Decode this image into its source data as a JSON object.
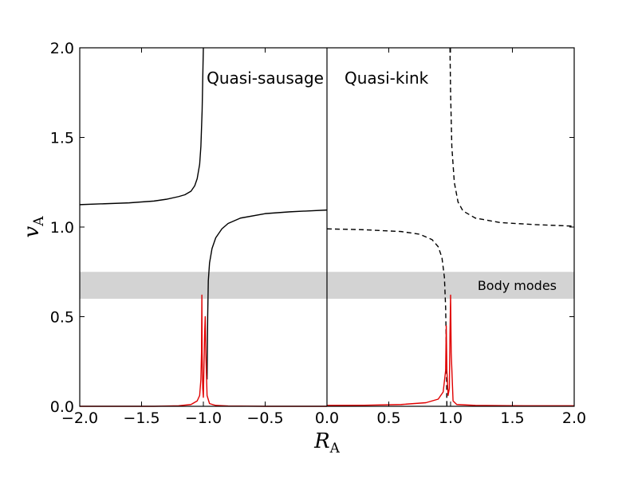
{
  "chart_data": {
    "type": "line",
    "xlabel": "R",
    "xlabel_sub": "A",
    "ylabel": "v",
    "ylabel_sub": "A",
    "xlim": [
      -2.0,
      2.0
    ],
    "ylim": [
      0.0,
      2.0
    ],
    "x_ticks": [
      -2.0,
      -1.5,
      -1.0,
      -0.5,
      0.0,
      0.5,
      1.0,
      1.5,
      2.0
    ],
    "x_tick_labels": [
      "−2.0",
      "−1.5",
      "−1.0",
      "−0.5",
      "0.0",
      "0.5",
      "1.0",
      "1.5",
      "2.0"
    ],
    "y_ticks": [
      0.0,
      0.5,
      1.0,
      1.5,
      2.0
    ],
    "y_tick_labels": [
      "0.0",
      "0.5",
      "1.0",
      "1.5",
      "2.0"
    ],
    "grid": false,
    "colors": {
      "curve": "#000000",
      "red_curve": "#e00000",
      "band": "#d3d3d3"
    },
    "band": {
      "y_range": [
        0.6,
        0.75
      ],
      "label": "Body modes"
    },
    "panels": [
      {
        "title": "Quasi-sausage",
        "x_range": [
          -2.0,
          0.0
        ],
        "series": [
          {
            "style": "solid",
            "color": "#000000",
            "points": [
              [
                -2.0,
                1.125
              ],
              [
                -1.8,
                1.13
              ],
              [
                -1.6,
                1.135
              ],
              [
                -1.4,
                1.145
              ],
              [
                -1.3,
                1.155
              ],
              [
                -1.2,
                1.17
              ],
              [
                -1.15,
                1.18
              ],
              [
                -1.1,
                1.2
              ],
              [
                -1.07,
                1.23
              ],
              [
                -1.05,
                1.27
              ],
              [
                -1.03,
                1.35
              ],
              [
                -1.02,
                1.45
              ],
              [
                -1.01,
                1.65
              ],
              [
                -1.003,
                1.9
              ],
              [
                -1.0,
                2.0
              ]
            ]
          },
          {
            "style": "solid",
            "color": "#000000",
            "points": [
              [
                -0.97,
                0.15
              ],
              [
                -0.965,
                0.5
              ],
              [
                -0.96,
                0.7
              ],
              [
                -0.95,
                0.8
              ],
              [
                -0.93,
                0.88
              ],
              [
                -0.9,
                0.94
              ],
              [
                -0.85,
                0.99
              ],
              [
                -0.8,
                1.02
              ],
              [
                -0.7,
                1.05
              ],
              [
                -0.5,
                1.075
              ],
              [
                -0.3,
                1.085
              ],
              [
                0.0,
                1.095
              ]
            ]
          },
          {
            "style": "solid",
            "color": "#e00000",
            "points": [
              [
                -2.0,
                0.0
              ],
              [
                -1.4,
                0.0
              ],
              [
                -1.2,
                0.003
              ],
              [
                -1.1,
                0.01
              ],
              [
                -1.05,
                0.03
              ],
              [
                -1.03,
                0.06
              ],
              [
                -1.02,
                0.15
              ],
              [
                -1.015,
                0.3
              ],
              [
                -1.012,
                0.62
              ],
              [
                -1.01,
                0.3
              ],
              [
                -1.005,
                0.1
              ],
              [
                -1.0,
                0.05
              ],
              [
                -0.99,
                0.4
              ],
              [
                -0.985,
                0.5
              ],
              [
                -0.98,
                0.3
              ],
              [
                -0.97,
                0.06
              ],
              [
                -0.95,
                0.015
              ],
              [
                -0.9,
                0.005
              ],
              [
                -0.8,
                0.002
              ],
              [
                -0.5,
                0.0
              ],
              [
                0.0,
                0.0
              ]
            ]
          }
        ]
      },
      {
        "title": "Quasi-kink",
        "x_range": [
          0.0,
          2.0
        ],
        "series": [
          {
            "style": "dashed",
            "color": "#000000",
            "points": [
              [
                0.0,
                0.99
              ],
              [
                0.3,
                0.985
              ],
              [
                0.6,
                0.975
              ],
              [
                0.75,
                0.96
              ],
              [
                0.85,
                0.93
              ],
              [
                0.9,
                0.89
              ],
              [
                0.93,
                0.83
              ],
              [
                0.95,
                0.72
              ],
              [
                0.96,
                0.55
              ],
              [
                0.965,
                0.35
              ],
              [
                0.97,
                0.0
              ]
            ]
          },
          {
            "style": "dashed",
            "color": "#000000",
            "points": [
              [
                0.995,
                2.0
              ],
              [
                1.0,
                1.75
              ],
              [
                1.01,
                1.45
              ],
              [
                1.03,
                1.25
              ],
              [
                1.06,
                1.14
              ],
              [
                1.1,
                1.09
              ],
              [
                1.2,
                1.05
              ],
              [
                1.4,
                1.025
              ],
              [
                1.7,
                1.013
              ],
              [
                2.0,
                1.005
              ]
            ]
          },
          {
            "style": "solid",
            "color": "#e00000",
            "points": [
              [
                0.0,
                0.005
              ],
              [
                0.3,
                0.006
              ],
              [
                0.6,
                0.01
              ],
              [
                0.8,
                0.02
              ],
              [
                0.9,
                0.04
              ],
              [
                0.94,
                0.08
              ],
              [
                0.96,
                0.2
              ],
              [
                0.965,
                0.45
              ],
              [
                0.97,
                0.2
              ],
              [
                0.98,
                0.06
              ],
              [
                0.99,
                0.1
              ],
              [
                0.995,
                0.4
              ],
              [
                1.0,
                0.62
              ],
              [
                1.005,
                0.3
              ],
              [
                1.02,
                0.03
              ],
              [
                1.05,
                0.01
              ],
              [
                1.2,
                0.005
              ],
              [
                1.6,
                0.003
              ],
              [
                2.0,
                0.003
              ]
            ]
          }
        ]
      }
    ]
  }
}
